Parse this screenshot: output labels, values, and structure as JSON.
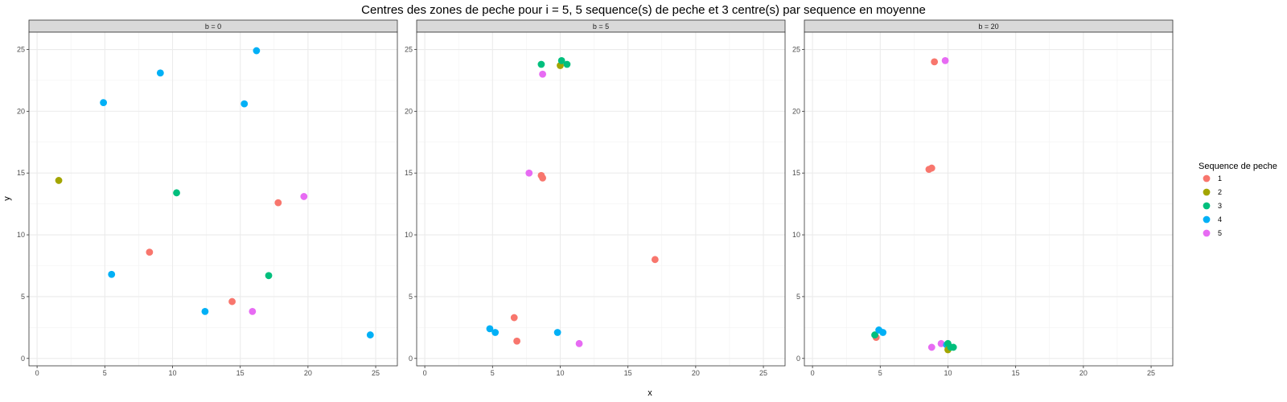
{
  "chart_data": {
    "type": "scatter",
    "title": "Centres des zones de peche pour i = 5, 5 sequence(s) de peche et 3 centre(s) par sequence en moyenne",
    "xlabel": "x",
    "ylabel": "y",
    "xlim": [
      -0.6,
      26.6
    ],
    "ylim": [
      -0.6,
      26.4
    ],
    "x_ticks": [
      0,
      5,
      10,
      15,
      20,
      25
    ],
    "y_ticks": [
      0,
      5,
      10,
      15,
      20,
      25
    ],
    "grid": true,
    "legend": {
      "title": "Sequence de peche",
      "position": "right",
      "entries": [
        {
          "label": "1",
          "color": "#F8766D"
        },
        {
          "label": "2",
          "color": "#A3A500"
        },
        {
          "label": "3",
          "color": "#00BF7D"
        },
        {
          "label": "4",
          "color": "#00B0F6"
        },
        {
          "label": "5",
          "color": "#E76BF3"
        }
      ]
    },
    "panels": [
      {
        "label": "b = 0",
        "points": [
          {
            "seq": 2,
            "x": 1.6,
            "y": 14.4
          },
          {
            "seq": 4,
            "x": 4.9,
            "y": 20.7
          },
          {
            "seq": 4,
            "x": 5.5,
            "y": 6.8
          },
          {
            "seq": 1,
            "x": 8.3,
            "y": 8.6
          },
          {
            "seq": 4,
            "x": 9.1,
            "y": 23.1
          },
          {
            "seq": 3,
            "x": 10.3,
            "y": 13.4
          },
          {
            "seq": 4,
            "x": 12.4,
            "y": 3.8
          },
          {
            "seq": 1,
            "x": 14.4,
            "y": 4.6
          },
          {
            "seq": 4,
            "x": 15.3,
            "y": 20.6
          },
          {
            "seq": 5,
            "x": 15.9,
            "y": 3.8
          },
          {
            "seq": 4,
            "x": 16.2,
            "y": 24.9
          },
          {
            "seq": 3,
            "x": 17.1,
            "y": 6.7
          },
          {
            "seq": 1,
            "x": 17.8,
            "y": 12.6
          },
          {
            "seq": 5,
            "x": 19.7,
            "y": 13.1
          },
          {
            "seq": 4,
            "x": 24.6,
            "y": 1.9
          }
        ]
      },
      {
        "label": "b = 5",
        "points": [
          {
            "seq": 4,
            "x": 4.8,
            "y": 2.4
          },
          {
            "seq": 4,
            "x": 5.2,
            "y": 2.1
          },
          {
            "seq": 1,
            "x": 6.6,
            "y": 3.3
          },
          {
            "seq": 1,
            "x": 6.8,
            "y": 1.4
          },
          {
            "seq": 5,
            "x": 7.7,
            "y": 15.0
          },
          {
            "seq": 3,
            "x": 8.6,
            "y": 23.8
          },
          {
            "seq": 1,
            "x": 8.6,
            "y": 14.8
          },
          {
            "seq": 1,
            "x": 8.7,
            "y": 14.6
          },
          {
            "seq": 5,
            "x": 8.7,
            "y": 23.0
          },
          {
            "seq": 4,
            "x": 9.8,
            "y": 2.1
          },
          {
            "seq": 2,
            "x": 10.0,
            "y": 23.7
          },
          {
            "seq": 3,
            "x": 10.1,
            "y": 24.1
          },
          {
            "seq": 3,
            "x": 10.5,
            "y": 23.8
          },
          {
            "seq": 5,
            "x": 11.4,
            "y": 1.2
          },
          {
            "seq": 1,
            "x": 17.0,
            "y": 8.0
          }
        ]
      },
      {
        "label": "b = 20",
        "points": [
          {
            "seq": 1,
            "x": 4.7,
            "y": 1.7
          },
          {
            "seq": 3,
            "x": 4.6,
            "y": 1.9
          },
          {
            "seq": 4,
            "x": 4.9,
            "y": 2.3
          },
          {
            "seq": 4,
            "x": 5.2,
            "y": 2.1
          },
          {
            "seq": 1,
            "x": 8.6,
            "y": 15.3
          },
          {
            "seq": 1,
            "x": 8.8,
            "y": 15.4
          },
          {
            "seq": 5,
            "x": 8.8,
            "y": 0.9
          },
          {
            "seq": 1,
            "x": 9.0,
            "y": 24.0
          },
          {
            "seq": 5,
            "x": 9.5,
            "y": 1.2
          },
          {
            "seq": 5,
            "x": 9.8,
            "y": 24.1
          },
          {
            "seq": 4,
            "x": 9.9,
            "y": 1.1
          },
          {
            "seq": 3,
            "x": 10.0,
            "y": 1.2
          },
          {
            "seq": 2,
            "x": 10.0,
            "y": 0.7
          },
          {
            "seq": 3,
            "x": 10.2,
            "y": 0.9
          },
          {
            "seq": 3,
            "x": 10.4,
            "y": 0.9
          }
        ]
      }
    ]
  }
}
